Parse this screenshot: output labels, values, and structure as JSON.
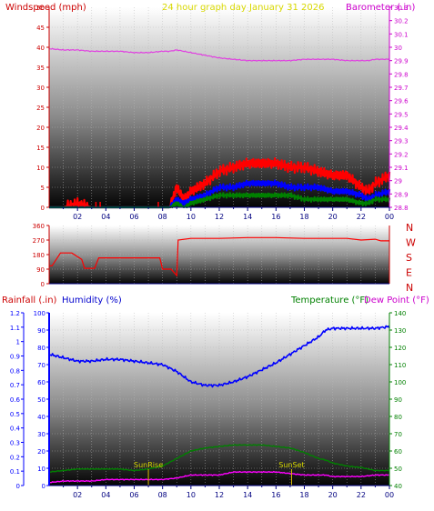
{
  "chart_data": [
    {
      "id": "wind",
      "type": "line",
      "title": "24 hour graph day   January 31 2026",
      "left_label": "Windspeed (mph)",
      "right_label": "Barometer (.in)",
      "x_ticks": [
        "02",
        "04",
        "06",
        "08",
        "10",
        "12",
        "14",
        "16",
        "18",
        "20",
        "22",
        "00"
      ],
      "left_ticks": [
        "0",
        "5",
        "10",
        "15",
        "20",
        "25",
        "30",
        "35",
        "40",
        "45",
        "50"
      ],
      "left_ylim": [
        0,
        50
      ],
      "right_ticks": [
        "28.8",
        "28.9",
        "29",
        "29.1",
        "29.2",
        "29.3",
        "29.4",
        "29.5",
        "29.6",
        "29.7",
        "29.8",
        "29.9",
        "30",
        "30.1",
        "30.2",
        "30.3"
      ],
      "right_ylim": [
        28.8,
        30.3
      ],
      "x": [
        0,
        1,
        2,
        3,
        4,
        5,
        6,
        7,
        8,
        8.5,
        9,
        9.5,
        10,
        11,
        12,
        13,
        14,
        15,
        16,
        17,
        18,
        19,
        20,
        21,
        22,
        22.5,
        23,
        24
      ],
      "series": [
        {
          "role": "barometer",
          "color": "#e040e0",
          "axis": "right",
          "values": [
            29.99,
            29.98,
            29.98,
            29.97,
            29.97,
            29.97,
            29.96,
            29.96,
            29.97,
            29.97,
            29.98,
            29.97,
            29.96,
            29.94,
            29.92,
            29.91,
            29.9,
            29.9,
            29.9,
            29.9,
            29.91,
            29.91,
            29.91,
            29.9,
            29.9,
            29.9,
            29.91,
            29.91
          ]
        },
        {
          "role": "gust",
          "color": "#ff0000",
          "axis": "left",
          "values": [
            0,
            0,
            1,
            0,
            0,
            0,
            0,
            0,
            0,
            0,
            5,
            2,
            4,
            6,
            9,
            10,
            11,
            11,
            11,
            10,
            10,
            9,
            8,
            8,
            5,
            4,
            6,
            8
          ]
        },
        {
          "role": "average",
          "color": "#0000ff",
          "axis": "left",
          "values": [
            0,
            0,
            0,
            0,
            0,
            0,
            0,
            0,
            0,
            0,
            2,
            1,
            2,
            3,
            5,
            5,
            6,
            6,
            6,
            5,
            5,
            5,
            4,
            4,
            3,
            2,
            3,
            4
          ]
        },
        {
          "role": "low",
          "color": "#008000",
          "axis": "left",
          "values": [
            0,
            0,
            0,
            0,
            0,
            0,
            0,
            0,
            0,
            0,
            1,
            0,
            1,
            2,
            3,
            3,
            3,
            3,
            3,
            3,
            2,
            2,
            2,
            2,
            1,
            1,
            2,
            2
          ]
        }
      ]
    },
    {
      "id": "direction",
      "type": "line",
      "left_ticks": [
        "360",
        "270",
        "180",
        "90",
        "0"
      ],
      "ylim": [
        0,
        360
      ],
      "compass": [
        "N",
        "W",
        "S",
        "E",
        "N"
      ],
      "x": [
        0,
        0.2,
        0.8,
        1.6,
        2.3,
        2.5,
        3.2,
        3.5,
        4.3,
        5,
        6,
        7,
        7.8,
        8,
        8.6,
        9,
        9.1,
        10,
        12,
        14,
        16,
        18,
        20,
        21,
        22,
        23,
        23.4,
        24
      ],
      "series": [
        {
          "role": "direction",
          "color": "#ff0000",
          "values": [
            110,
            110,
            190,
            190,
            150,
            95,
            95,
            160,
            160,
            160,
            160,
            160,
            160,
            90,
            90,
            50,
            270,
            280,
            280,
            285,
            285,
            280,
            280,
            280,
            270,
            275,
            265,
            265
          ]
        }
      ]
    },
    {
      "id": "temperature",
      "type": "line",
      "labels": {
        "rainfall": "Rainfall (.in)",
        "humidity": "Humidity (%)",
        "temperature": "Temperature (°F)",
        "dewpoint": "Dew Point (°F)"
      },
      "x_ticks": [
        "02",
        "04",
        "06",
        "08",
        "10",
        "12",
        "14",
        "16",
        "18",
        "20",
        "22",
        "00"
      ],
      "humidity_ticks": [
        "0",
        "10",
        "20",
        "30",
        "40",
        "50",
        "60",
        "70",
        "80",
        "90",
        "100"
      ],
      "humidity_ylim": [
        0,
        100
      ],
      "rain_ticks": [
        "0",
        "0.1",
        "0.2",
        "0.3",
        "0.4",
        "0.5",
        "0.6",
        "0.7",
        "0.8",
        "0.9",
        "1",
        "1.1",
        "1.2"
      ],
      "rain_ylim": [
        0,
        1.2
      ],
      "temp_ticks": [
        "40",
        "50",
        "60",
        "70",
        "80",
        "90",
        "100",
        "110",
        "120",
        "130",
        "140"
      ],
      "temp_ylim": [
        30,
        145
      ],
      "x": [
        0,
        1,
        2,
        3,
        4,
        5,
        6,
        7,
        8,
        9,
        10,
        11,
        12,
        13,
        14,
        15,
        16,
        17,
        18,
        19,
        19.5,
        20,
        21,
        22,
        23,
        24
      ],
      "series": [
        {
          "role": "humidity",
          "color": "#0000ff",
          "axis": "humidity",
          "values": [
            76,
            74,
            72,
            72,
            73,
            73,
            72,
            71,
            70,
            66,
            60,
            58,
            58,
            60,
            63,
            67,
            71,
            76,
            81,
            86,
            90,
            91,
            91,
            91,
            91,
            92
          ]
        },
        {
          "role": "temperature",
          "color": "#008000",
          "axis": "temp",
          "values": [
            39,
            40,
            41,
            41,
            41,
            41,
            40,
            41,
            43,
            48,
            53,
            55,
            56,
            57,
            57,
            57,
            56,
            55,
            52,
            48,
            47,
            45,
            43,
            42,
            40,
            40
          ]
        },
        {
          "role": "dewpoint",
          "color": "#ff00ff",
          "axis": "temp",
          "values": [
            32,
            33,
            33,
            33,
            34,
            34,
            34,
            34,
            34,
            35,
            37,
            37,
            37,
            39,
            39,
            39,
            39,
            38,
            37,
            37,
            37,
            36,
            36,
            36,
            37,
            37
          ]
        }
      ],
      "markers": [
        {
          "label": "SunRise",
          "x": 7.0
        },
        {
          "label": "SunSet",
          "x": 17.1
        }
      ]
    }
  ]
}
